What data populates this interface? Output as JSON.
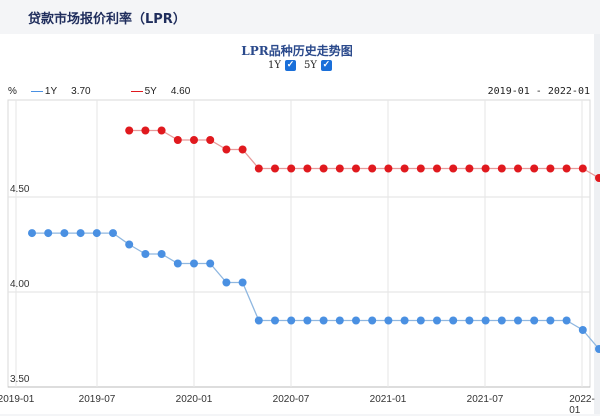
{
  "header": {
    "title": "贷款市场报价利率（LPR）"
  },
  "chart": {
    "title": "LPR品种历史走势图",
    "toggles": [
      {
        "label": "1Y",
        "checked": true
      },
      {
        "label": "5Y",
        "checked": true
      }
    ],
    "unit": "%",
    "legend": [
      {
        "name": "1Y",
        "value": "3.70",
        "color": "#4a90e2"
      },
      {
        "name": "5Y",
        "value": "4.60",
        "color": "#e0191e"
      }
    ],
    "range": "2019-01 - 2022-01",
    "y_ticks": [
      "4.50",
      "4.00",
      "3.50"
    ],
    "x_ticks": [
      "2019-01",
      "2019-07",
      "2020-01",
      "2020-07",
      "2021-01",
      "2021-07",
      "2022-01"
    ]
  },
  "chart_data": {
    "type": "line",
    "title": "LPR品种历史走势图",
    "xlabel": "",
    "ylabel": "%",
    "ylim": [
      3.5,
      4.9
    ],
    "grid": true,
    "legend_position": "top-left",
    "x": [
      "2019-02",
      "2019-03",
      "2019-04",
      "2019-05",
      "2019-06",
      "2019-07",
      "2019-08",
      "2019-09",
      "2019-10",
      "2019-11",
      "2019-12",
      "2020-01",
      "2020-02",
      "2020-03",
      "2020-04",
      "2020-05",
      "2020-06",
      "2020-07",
      "2020-08",
      "2020-09",
      "2020-10",
      "2020-11",
      "2020-12",
      "2021-01",
      "2021-02",
      "2021-03",
      "2021-04",
      "2021-05",
      "2021-06",
      "2021-07",
      "2021-08",
      "2021-09",
      "2021-10",
      "2021-11",
      "2021-12",
      "2022-01"
    ],
    "series": [
      {
        "name": "1Y",
        "color": "#4a90e2",
        "values": [
          4.31,
          4.31,
          4.31,
          4.31,
          4.31,
          4.31,
          4.25,
          4.2,
          4.2,
          4.15,
          4.15,
          4.15,
          4.05,
          4.05,
          3.85,
          3.85,
          3.85,
          3.85,
          3.85,
          3.85,
          3.85,
          3.85,
          3.85,
          3.85,
          3.85,
          3.85,
          3.85,
          3.85,
          3.85,
          3.85,
          3.85,
          3.85,
          3.85,
          3.85,
          3.8,
          3.7
        ]
      },
      {
        "name": "5Y",
        "color": "#e0191e",
        "values": [
          null,
          null,
          null,
          null,
          null,
          null,
          4.85,
          4.85,
          4.85,
          4.8,
          4.8,
          4.8,
          4.75,
          4.75,
          4.65,
          4.65,
          4.65,
          4.65,
          4.65,
          4.65,
          4.65,
          4.65,
          4.65,
          4.65,
          4.65,
          4.65,
          4.65,
          4.65,
          4.65,
          4.65,
          4.65,
          4.65,
          4.65,
          4.65,
          4.65,
          4.6
        ]
      }
    ]
  }
}
